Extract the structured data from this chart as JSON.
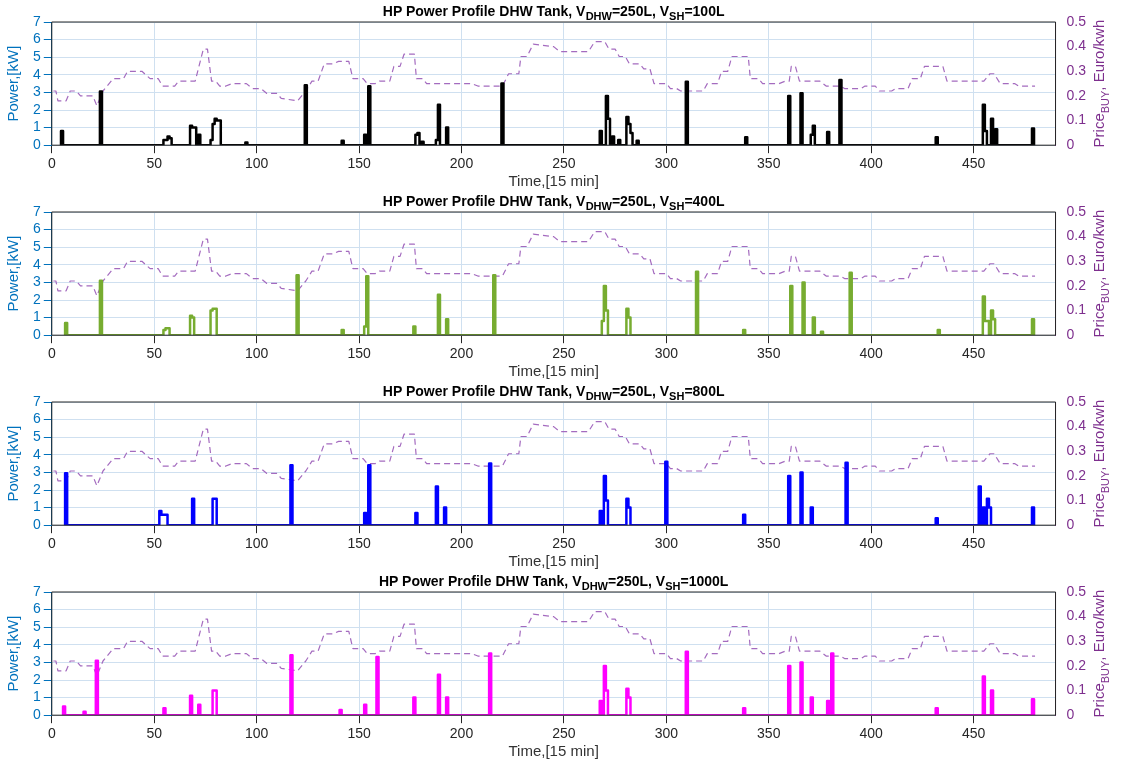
{
  "chart_data": [
    {
      "type": "step",
      "title": "HP Power Profile DHW Tank, V$_{DHW}$=250L, V$_{SH}$=100L",
      "xlabel": "Time,[15 min]",
      "ylabel": "Power,[kW]",
      "y2label": "Price$_{BUY}$, Euro/kwh",
      "xlim": [
        0,
        490
      ],
      "xticks": [
        0,
        50,
        100,
        150,
        200,
        250,
        300,
        350,
        400,
        450
      ],
      "ylim": [
        0,
        7
      ],
      "yticks": [
        0,
        1,
        2,
        3,
        4,
        5,
        6,
        7
      ],
      "y2lim": [
        0,
        0.5
      ],
      "y2ticks": [
        0,
        0.1,
        0.2,
        0.3,
        0.4,
        0.5
      ],
      "grid": true,
      "series": [
        {
          "color": "#000000",
          "x": [
            4,
            5,
            6,
            23,
            24,
            25,
            54,
            55,
            56,
            57,
            58,
            59,
            67,
            68,
            69,
            70,
            71,
            72,
            73,
            77,
            78,
            79,
            80,
            81,
            82,
            83,
            94,
            95,
            96,
            123,
            124,
            125,
            141,
            142,
            143,
            152,
            153,
            154,
            155,
            156,
            177,
            178,
            179,
            180,
            181,
            182,
            187,
            188,
            189,
            190,
            192,
            193,
            194,
            219,
            220,
            221,
            267,
            268,
            269,
            270,
            271,
            272,
            273,
            274,
            275,
            276,
            277,
            278,
            280,
            281,
            282,
            283,
            284,
            285,
            286,
            287,
            309,
            310,
            311,
            338,
            339,
            340,
            359,
            360,
            361,
            365,
            366,
            367,
            370,
            371,
            372,
            373,
            378,
            379,
            380,
            384,
            385,
            386,
            431,
            432,
            433,
            454,
            455,
            456,
            457,
            458,
            459,
            460,
            461,
            462,
            478,
            479,
            480
          ],
          "values": [
            0,
            0.8,
            0,
            0,
            3.05,
            0,
            0,
            0.3,
            0.3,
            0.5,
            0.4,
            0,
            0,
            1.1,
            1.0,
            1.0,
            0,
            0.6,
            0,
            0,
            0.3,
            1.2,
            1.5,
            1.4,
            1.4,
            0,
            0,
            0.15,
            0,
            0,
            3.4,
            0,
            0,
            0.25,
            0,
            0,
            0.6,
            0,
            3.35,
            0,
            0,
            0.6,
            0.7,
            0,
            0.2,
            0,
            0,
            0.3,
            2.3,
            0,
            0,
            1.0,
            0,
            0,
            3.5,
            0,
            0,
            0.8,
            0,
            0,
            2.8,
            1.5,
            0,
            0.5,
            0,
            0,
            0.3,
            0,
            0,
            1.6,
            1.2,
            0.7,
            0,
            0,
            0.25,
            0,
            0,
            3.6,
            0,
            0,
            0.45,
            0,
            0,
            2.8,
            0,
            0,
            2.95,
            0,
            0,
            0.6,
            1.1,
            0,
            0,
            0.75,
            0,
            0,
            3.7,
            0,
            0,
            0.45,
            0,
            0,
            2.3,
            0.8,
            0,
            0,
            1.5,
            0,
            0.9,
            0,
            0,
            0.95,
            0
          ]
        },
        {
          "type": "line",
          "axis": "y2",
          "line_style": "dashed",
          "color": "#a46bbf",
          "x": [
            0,
            2,
            3,
            7,
            9,
            12,
            14,
            20,
            22,
            25,
            30,
            35,
            37,
            44,
            48,
            52,
            54,
            60,
            62,
            70,
            74,
            76,
            78,
            80,
            82,
            85,
            88,
            95,
            98,
            102,
            105,
            110,
            112,
            120,
            124,
            127,
            130,
            133,
            137,
            140,
            145,
            147,
            152,
            154,
            158,
            160,
            165,
            167,
            170,
            172,
            177,
            178,
            181,
            183,
            187,
            190,
            195,
            197,
            205,
            208,
            220,
            223,
            228,
            229,
            232,
            235,
            245,
            248,
            262,
            265,
            270,
            272,
            275,
            277,
            280,
            282,
            287,
            289,
            292,
            294,
            300,
            302,
            305,
            307,
            312,
            314,
            318,
            320,
            325,
            327,
            330,
            332,
            340,
            341,
            345,
            347,
            355,
            358,
            360,
            361,
            363,
            365,
            375,
            378,
            385,
            387,
            395,
            397,
            402,
            404,
            410,
            412,
            418,
            420,
            424,
            426,
            435,
            437,
            442,
            445,
            455,
            458,
            460,
            463,
            470,
            472,
            480
          ],
          "values": [
            0.22,
            0.22,
            0.18,
            0.18,
            0.22,
            0.22,
            0.2,
            0.2,
            0.16,
            0.22,
            0.27,
            0.27,
            0.3,
            0.3,
            0.27,
            0.27,
            0.24,
            0.24,
            0.26,
            0.26,
            0.39,
            0.39,
            0.26,
            0.26,
            0.24,
            0.24,
            0.25,
            0.25,
            0.23,
            0.23,
            0.21,
            0.21,
            0.19,
            0.18,
            0.22,
            0.26,
            0.26,
            0.33,
            0.33,
            0.34,
            0.34,
            0.27,
            0.27,
            0.25,
            0.25,
            0.26,
            0.26,
            0.32,
            0.32,
            0.37,
            0.37,
            0.27,
            0.27,
            0.25,
            0.25,
            0.25,
            0.25,
            0.25,
            0.25,
            0.24,
            0.24,
            0.29,
            0.29,
            0.36,
            0.36,
            0.41,
            0.4,
            0.38,
            0.38,
            0.42,
            0.42,
            0.39,
            0.39,
            0.36,
            0.36,
            0.33,
            0.33,
            0.31,
            0.31,
            0.25,
            0.25,
            0.23,
            0.23,
            0.22,
            0.22,
            0.22,
            0.22,
            0.25,
            0.25,
            0.3,
            0.3,
            0.36,
            0.36,
            0.27,
            0.27,
            0.25,
            0.25,
            0.26,
            0.26,
            0.32,
            0.32,
            0.26,
            0.26,
            0.24,
            0.24,
            0.23,
            0.23,
            0.24,
            0.24,
            0.22,
            0.22,
            0.23,
            0.23,
            0.27,
            0.27,
            0.32,
            0.32,
            0.26,
            0.26,
            0.26,
            0.26,
            0.29,
            0.29,
            0.25,
            0.25,
            0.24,
            0.24
          ]
        }
      ]
    },
    {
      "type": "step",
      "title": "HP Power Profile DHW Tank, V$_{DHW}$=250L, V$_{SH}$=400L",
      "xlabel": "Time,[15 min]",
      "ylabel": "Power,[kW]",
      "y2label": "Price$_{BUY}$, Euro/kwh",
      "xlim": [
        0,
        490
      ],
      "xticks": [
        0,
        50,
        100,
        150,
        200,
        250,
        300,
        350,
        400,
        450
      ],
      "ylim": [
        0,
        7
      ],
      "yticks": [
        0,
        1,
        2,
        3,
        4,
        5,
        6,
        7
      ],
      "y2lim": [
        0,
        0.5
      ],
      "y2ticks": [
        0,
        0.1,
        0.2,
        0.3,
        0.4,
        0.5
      ],
      "grid": true,
      "series": [
        {
          "color": "#77ac30",
          "x": [
            6,
            7,
            8,
            23,
            24,
            25,
            54,
            55,
            56,
            57,
            58,
            67,
            68,
            69,
            70,
            77,
            78,
            79,
            80,
            81,
            119,
            120,
            121,
            141,
            142,
            143,
            152,
            153,
            154,
            155,
            176,
            177,
            178,
            188,
            189,
            190,
            192,
            193,
            194,
            215,
            216,
            217,
            268,
            269,
            270,
            271,
            272,
            280,
            281,
            282,
            283,
            314,
            315,
            316,
            337,
            338,
            339,
            360,
            361,
            362,
            366,
            367,
            368,
            371,
            372,
            373,
            375,
            376,
            377,
            389,
            390,
            391,
            432,
            433,
            434,
            454,
            455,
            456,
            457,
            458,
            459,
            460,
            461,
            478,
            479,
            480
          ],
          "values": [
            0,
            0.7,
            0,
            0,
            3.1,
            0,
            0,
            0.3,
            0.4,
            0.4,
            0,
            0,
            1.1,
            1.0,
            0,
            0,
            1.4,
            1.5,
            1.5,
            0,
            0,
            3.4,
            0,
            0,
            0.3,
            0,
            0,
            0.5,
            3.35,
            0,
            0,
            0.5,
            0,
            0,
            2.3,
            0,
            0,
            0.9,
            0,
            0,
            3.4,
            0,
            0,
            0.8,
            2.8,
            1.4,
            0,
            0,
            1.5,
            1.0,
            0,
            0,
            3.6,
            0,
            0,
            0.3,
            0,
            0,
            2.8,
            0,
            0,
            3.0,
            0,
            0,
            1.0,
            0,
            0,
            0.2,
            0,
            0,
            3.55,
            0,
            0,
            0.3,
            0,
            0,
            2.2,
            0.8,
            0.8,
            0,
            1.4,
            0.9,
            0,
            0,
            0.9,
            0
          ]
        },
        {
          "type": "line",
          "axis": "y2",
          "line_style": "dashed",
          "color": "#a46bbf",
          "x": [
            0,
            2,
            3,
            7,
            9,
            12,
            14,
            20,
            22,
            25,
            30,
            35,
            37,
            44,
            48,
            52,
            54,
            60,
            62,
            70,
            74,
            76,
            78,
            80,
            82,
            85,
            88,
            95,
            98,
            102,
            105,
            110,
            112,
            120,
            124,
            127,
            130,
            133,
            137,
            140,
            145,
            147,
            152,
            154,
            158,
            160,
            165,
            167,
            170,
            172,
            177,
            178,
            181,
            183,
            187,
            190,
            195,
            197,
            205,
            208,
            220,
            223,
            228,
            229,
            232,
            235,
            245,
            248,
            262,
            265,
            270,
            272,
            275,
            277,
            280,
            282,
            287,
            289,
            292,
            294,
            300,
            302,
            305,
            307,
            312,
            314,
            318,
            320,
            325,
            327,
            330,
            332,
            340,
            341,
            345,
            347,
            355,
            358,
            360,
            361,
            363,
            365,
            375,
            378,
            385,
            387,
            395,
            397,
            402,
            404,
            410,
            412,
            418,
            420,
            424,
            426,
            435,
            437,
            442,
            445,
            455,
            458,
            460,
            463,
            470,
            472,
            480
          ],
          "values": [
            0.22,
            0.22,
            0.18,
            0.18,
            0.22,
            0.22,
            0.2,
            0.2,
            0.16,
            0.22,
            0.27,
            0.27,
            0.3,
            0.3,
            0.27,
            0.27,
            0.24,
            0.24,
            0.26,
            0.26,
            0.39,
            0.39,
            0.26,
            0.26,
            0.24,
            0.24,
            0.25,
            0.25,
            0.23,
            0.23,
            0.21,
            0.21,
            0.19,
            0.18,
            0.22,
            0.26,
            0.26,
            0.33,
            0.33,
            0.34,
            0.34,
            0.27,
            0.27,
            0.25,
            0.25,
            0.26,
            0.26,
            0.32,
            0.32,
            0.37,
            0.37,
            0.27,
            0.27,
            0.25,
            0.25,
            0.25,
            0.25,
            0.25,
            0.25,
            0.24,
            0.24,
            0.29,
            0.29,
            0.36,
            0.36,
            0.41,
            0.4,
            0.38,
            0.38,
            0.42,
            0.42,
            0.39,
            0.39,
            0.36,
            0.36,
            0.33,
            0.33,
            0.31,
            0.31,
            0.25,
            0.25,
            0.23,
            0.23,
            0.22,
            0.22,
            0.22,
            0.22,
            0.25,
            0.25,
            0.3,
            0.3,
            0.36,
            0.36,
            0.27,
            0.27,
            0.25,
            0.25,
            0.26,
            0.26,
            0.32,
            0.32,
            0.26,
            0.26,
            0.24,
            0.24,
            0.23,
            0.23,
            0.24,
            0.24,
            0.22,
            0.22,
            0.23,
            0.23,
            0.27,
            0.27,
            0.32,
            0.32,
            0.26,
            0.26,
            0.26,
            0.26,
            0.29,
            0.29,
            0.25,
            0.25,
            0.24,
            0.24
          ]
        }
      ]
    },
    {
      "type": "step",
      "title": "HP Power Profile DHW Tank, V$_{DHW}$=250L, V$_{SH}$=800L",
      "xlabel": "Time,[15 min]",
      "ylabel": "Power,[kW]",
      "y2label": "Price$_{BUY}$, Euro/kwh",
      "xlim": [
        0,
        490
      ],
      "xticks": [
        0,
        50,
        100,
        150,
        200,
        250,
        300,
        350,
        400,
        450
      ],
      "ylim": [
        0,
        7
      ],
      "yticks": [
        0,
        1,
        2,
        3,
        4,
        5,
        6,
        7
      ],
      "y2lim": [
        0,
        0.5
      ],
      "y2ticks": [
        0,
        0.1,
        0.2,
        0.3,
        0.4,
        0.5
      ],
      "grid": true,
      "series": [
        {
          "color": "#0000ff",
          "x": [
            6,
            7,
            8,
            52,
            53,
            54,
            55,
            56,
            57,
            68,
            69,
            70,
            78,
            79,
            80,
            81,
            116,
            117,
            118,
            152,
            153,
            154,
            155,
            156,
            177,
            178,
            179,
            187,
            188,
            189,
            191,
            192,
            193,
            213,
            214,
            215,
            267,
            268,
            269,
            270,
            271,
            272,
            280,
            281,
            282,
            283,
            299,
            300,
            301,
            337,
            338,
            339,
            359,
            360,
            361,
            365,
            366,
            367,
            370,
            371,
            372,
            387,
            388,
            389,
            431,
            432,
            433,
            452,
            453,
            454,
            455,
            456,
            457,
            458,
            459,
            478,
            479,
            480
          ],
          "values": [
            0,
            2.95,
            0,
            0,
            0.8,
            0.6,
            0.6,
            0.6,
            0,
            0,
            1.5,
            0,
            0,
            1.5,
            1.5,
            0,
            0,
            3.4,
            0,
            0,
            0.7,
            0,
            3.4,
            0,
            0,
            0.7,
            0,
            0,
            2.2,
            0,
            0,
            1.0,
            0,
            0,
            3.5,
            0,
            0,
            0.8,
            0,
            2.8,
            1.4,
            0,
            0,
            1.5,
            1.0,
            0,
            0,
            3.6,
            0,
            0,
            0.6,
            0,
            0,
            2.8,
            0,
            0,
            3.0,
            0,
            0,
            1.0,
            0,
            0,
            3.55,
            0,
            0,
            0.4,
            0,
            0,
            2.2,
            0,
            1.0,
            0,
            1.5,
            1.0,
            0,
            0,
            1.0,
            0
          ]
        },
        {
          "type": "line",
          "axis": "y2",
          "line_style": "dashed",
          "color": "#a46bbf",
          "x": [
            0,
            2,
            3,
            7,
            9,
            12,
            14,
            20,
            22,
            25,
            30,
            35,
            37,
            44,
            48,
            52,
            54,
            60,
            62,
            70,
            74,
            76,
            78,
            80,
            82,
            85,
            88,
            95,
            98,
            102,
            105,
            110,
            112,
            120,
            124,
            127,
            130,
            133,
            137,
            140,
            145,
            147,
            152,
            154,
            158,
            160,
            165,
            167,
            170,
            172,
            177,
            178,
            181,
            183,
            187,
            190,
            195,
            197,
            205,
            208,
            220,
            223,
            228,
            229,
            232,
            235,
            245,
            248,
            262,
            265,
            270,
            272,
            275,
            277,
            280,
            282,
            287,
            289,
            292,
            294,
            300,
            302,
            305,
            307,
            312,
            314,
            318,
            320,
            325,
            327,
            330,
            332,
            340,
            341,
            345,
            347,
            355,
            358,
            360,
            361,
            363,
            365,
            375,
            378,
            385,
            387,
            395,
            397,
            402,
            404,
            410,
            412,
            418,
            420,
            424,
            426,
            435,
            437,
            442,
            445,
            455,
            458,
            460,
            463,
            470,
            472,
            480
          ],
          "values": [
            0.22,
            0.22,
            0.18,
            0.18,
            0.22,
            0.22,
            0.2,
            0.2,
            0.16,
            0.22,
            0.27,
            0.27,
            0.3,
            0.3,
            0.27,
            0.27,
            0.24,
            0.24,
            0.26,
            0.26,
            0.39,
            0.39,
            0.26,
            0.26,
            0.24,
            0.24,
            0.25,
            0.25,
            0.23,
            0.23,
            0.21,
            0.21,
            0.19,
            0.18,
            0.22,
            0.26,
            0.26,
            0.33,
            0.33,
            0.34,
            0.34,
            0.27,
            0.27,
            0.25,
            0.25,
            0.26,
            0.26,
            0.32,
            0.32,
            0.37,
            0.37,
            0.27,
            0.27,
            0.25,
            0.25,
            0.25,
            0.25,
            0.25,
            0.25,
            0.24,
            0.24,
            0.29,
            0.29,
            0.36,
            0.36,
            0.41,
            0.4,
            0.38,
            0.38,
            0.42,
            0.42,
            0.39,
            0.39,
            0.36,
            0.36,
            0.33,
            0.33,
            0.31,
            0.31,
            0.25,
            0.25,
            0.23,
            0.23,
            0.22,
            0.22,
            0.22,
            0.22,
            0.25,
            0.25,
            0.3,
            0.3,
            0.36,
            0.36,
            0.27,
            0.27,
            0.25,
            0.25,
            0.26,
            0.26,
            0.32,
            0.32,
            0.26,
            0.26,
            0.24,
            0.24,
            0.23,
            0.23,
            0.24,
            0.24,
            0.22,
            0.22,
            0.23,
            0.23,
            0.27,
            0.27,
            0.32,
            0.32,
            0.26,
            0.26,
            0.26,
            0.26,
            0.29,
            0.29,
            0.25,
            0.25,
            0.24,
            0.24
          ]
        }
      ]
    },
    {
      "type": "step",
      "title": "HP Power Profile DHW Tank, V$_{DHW}$=250L, V$_{SH}$=1000L",
      "xlabel": "Time,[15 min]",
      "ylabel": "Power,[kW]",
      "y2label": "Price$_{BUY}$, Euro/kwh",
      "xlim": [
        0,
        490
      ],
      "xticks": [
        0,
        50,
        100,
        150,
        200,
        250,
        300,
        350,
        400,
        450
      ],
      "ylim": [
        0,
        7
      ],
      "yticks": [
        0,
        1,
        2,
        3,
        4,
        5,
        6,
        7
      ],
      "y2lim": [
        0,
        0.5
      ],
      "y2ticks": [
        0,
        0.1,
        0.2,
        0.3,
        0.4,
        0.5
      ],
      "grid": true,
      "series": [
        {
          "color": "#ff00ff",
          "x": [
            5,
            6,
            7,
            15,
            16,
            17,
            21,
            22,
            23,
            54,
            55,
            56,
            67,
            68,
            69,
            71,
            72,
            73,
            78,
            79,
            80,
            81,
            116,
            117,
            118,
            140,
            141,
            142,
            152,
            153,
            154,
            158,
            159,
            160,
            176,
            177,
            178,
            188,
            189,
            190,
            192,
            193,
            194,
            213,
            214,
            215,
            267,
            268,
            269,
            270,
            271,
            272,
            280,
            281,
            282,
            283,
            309,
            310,
            311,
            337,
            338,
            339,
            359,
            360,
            361,
            365,
            366,
            367,
            370,
            371,
            372,
            378,
            379,
            380,
            381,
            382,
            431,
            432,
            433,
            454,
            455,
            456,
            458,
            459,
            460,
            478,
            479,
            480
          ],
          "values": [
            0,
            0.5,
            0,
            0,
            0.2,
            0,
            0,
            3.1,
            0,
            0,
            0.4,
            0,
            0,
            1.1,
            0,
            0,
            0.6,
            0,
            0,
            1.4,
            1.4,
            0,
            0,
            3.4,
            0,
            0,
            0.3,
            0,
            0,
            0.6,
            0,
            0,
            3.3,
            0,
            0,
            1.0,
            0,
            0,
            2.3,
            0,
            0,
            1.0,
            0,
            0,
            3.5,
            0,
            0,
            0.8,
            0,
            2.8,
            1.4,
            0,
            0,
            1.5,
            1.0,
            0,
            0,
            3.6,
            0,
            0,
            0.4,
            0,
            0,
            2.8,
            0,
            0,
            3.0,
            0,
            0,
            1.0,
            0,
            0,
            0.8,
            0,
            3.5,
            0,
            0,
            0.4,
            0,
            0,
            2.2,
            0,
            0,
            1.4,
            0,
            0,
            0.9,
            0
          ]
        },
        {
          "type": "line",
          "axis": "y2",
          "line_style": "dashed",
          "color": "#a46bbf",
          "x": [
            0,
            2,
            3,
            7,
            9,
            12,
            14,
            20,
            22,
            25,
            30,
            35,
            37,
            44,
            48,
            52,
            54,
            60,
            62,
            70,
            74,
            76,
            78,
            80,
            82,
            85,
            88,
            95,
            98,
            102,
            105,
            110,
            112,
            120,
            124,
            127,
            130,
            133,
            137,
            140,
            145,
            147,
            152,
            154,
            158,
            160,
            165,
            167,
            170,
            172,
            177,
            178,
            181,
            183,
            187,
            190,
            195,
            197,
            205,
            208,
            220,
            223,
            228,
            229,
            232,
            235,
            245,
            248,
            262,
            265,
            270,
            272,
            275,
            277,
            280,
            282,
            287,
            289,
            292,
            294,
            300,
            302,
            305,
            307,
            312,
            314,
            318,
            320,
            325,
            327,
            330,
            332,
            340,
            341,
            345,
            347,
            355,
            358,
            360,
            361,
            363,
            365,
            375,
            378,
            385,
            387,
            395,
            397,
            402,
            404,
            410,
            412,
            418,
            420,
            424,
            426,
            435,
            437,
            442,
            445,
            455,
            458,
            460,
            463,
            470,
            472,
            480
          ],
          "values": [
            0.22,
            0.22,
            0.18,
            0.18,
            0.22,
            0.22,
            0.2,
            0.2,
            0.16,
            0.22,
            0.27,
            0.27,
            0.3,
            0.3,
            0.27,
            0.27,
            0.24,
            0.24,
            0.26,
            0.26,
            0.39,
            0.39,
            0.26,
            0.26,
            0.24,
            0.24,
            0.25,
            0.25,
            0.23,
            0.23,
            0.21,
            0.21,
            0.19,
            0.18,
            0.22,
            0.26,
            0.26,
            0.33,
            0.33,
            0.34,
            0.34,
            0.27,
            0.27,
            0.25,
            0.25,
            0.26,
            0.26,
            0.32,
            0.32,
            0.37,
            0.37,
            0.27,
            0.27,
            0.25,
            0.25,
            0.25,
            0.25,
            0.25,
            0.25,
            0.24,
            0.24,
            0.29,
            0.29,
            0.36,
            0.36,
            0.41,
            0.4,
            0.38,
            0.38,
            0.42,
            0.42,
            0.39,
            0.39,
            0.36,
            0.36,
            0.33,
            0.33,
            0.31,
            0.31,
            0.25,
            0.25,
            0.23,
            0.23,
            0.22,
            0.22,
            0.22,
            0.22,
            0.25,
            0.25,
            0.3,
            0.3,
            0.36,
            0.36,
            0.27,
            0.27,
            0.25,
            0.25,
            0.26,
            0.26,
            0.32,
            0.32,
            0.26,
            0.26,
            0.24,
            0.24,
            0.23,
            0.23,
            0.24,
            0.24,
            0.22,
            0.22,
            0.23,
            0.23,
            0.27,
            0.27,
            0.32,
            0.32,
            0.26,
            0.26,
            0.26,
            0.26,
            0.29,
            0.29,
            0.25,
            0.25,
            0.24,
            0.24
          ]
        }
      ]
    }
  ]
}
